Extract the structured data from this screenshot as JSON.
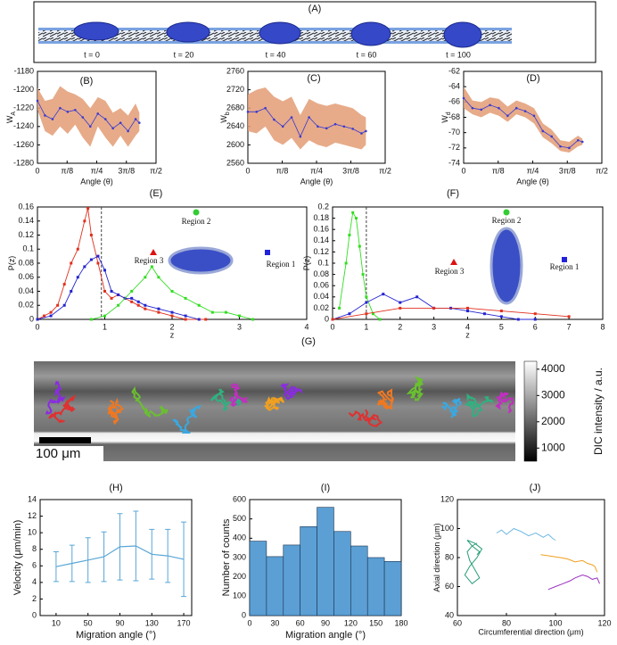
{
  "chart_data": [
    {
      "type": "image_strip",
      "title": "(A)",
      "labels": [
        "t = 0",
        "t = 20",
        "t = 40",
        "t = 60",
        "t = 100"
      ]
    },
    {
      "type": "band_line",
      "title": "(B)",
      "xlabel": "Angle (θ)",
      "ylabel": "W",
      "ylabel_sub": "A",
      "xlim": [
        0,
        1.5708
      ],
      "ylim": [
        -1280,
        -1180
      ],
      "xticks": [
        0,
        {
          "value": 0.3927,
          "label": "π/8"
        },
        {
          "value": 0.7854,
          "label": "π/4"
        },
        {
          "value": 1.1781,
          "label": "3π/8"
        },
        {
          "value": 1.5708,
          "label": "π/2"
        }
      ],
      "yticks": [
        -1280,
        -1260,
        -1240,
        -1220,
        -1200,
        -1180
      ],
      "x": [
        0,
        0.1,
        0.2,
        0.3,
        0.4,
        0.5,
        0.6,
        0.7,
        0.8,
        0.9,
        1.0,
        1.1,
        1.2,
        1.3,
        1.35
      ],
      "values": [
        -1212,
        -1228,
        -1232,
        -1220,
        -1224,
        -1222,
        -1230,
        -1240,
        -1226,
        -1232,
        -1242,
        -1236,
        -1245,
        -1232,
        -1236
      ],
      "lower": [
        -1222,
        -1245,
        -1250,
        -1240,
        -1248,
        -1238,
        -1252,
        -1262,
        -1240,
        -1252,
        -1262,
        -1250,
        -1262,
        -1250,
        -1245
      ],
      "upper": [
        -1198,
        -1212,
        -1210,
        -1196,
        -1202,
        -1205,
        -1210,
        -1220,
        -1208,
        -1212,
        -1225,
        -1220,
        -1228,
        -1215,
        -1225
      ],
      "color": "#3a3ad0",
      "band_color": "#e39c74"
    },
    {
      "type": "band_line",
      "title": "(C)",
      "xlabel": "Angle (θ)",
      "ylabel": "W",
      "ylabel_sub": "b",
      "xlim": [
        0,
        1.5708
      ],
      "ylim": [
        2560,
        2760
      ],
      "xticks": [
        0,
        {
          "value": 0.3927,
          "label": "π/8"
        },
        {
          "value": 0.7854,
          "label": "π/4"
        },
        {
          "value": 1.1781,
          "label": "3π/8"
        },
        {
          "value": 1.5708,
          "label": "π/2"
        }
      ],
      "yticks": [
        2560,
        2600,
        2640,
        2680,
        2720,
        2760
      ],
      "x": [
        0,
        0.1,
        0.2,
        0.3,
        0.4,
        0.5,
        0.6,
        0.7,
        0.8,
        0.9,
        1.0,
        1.1,
        1.2,
        1.3,
        1.35
      ],
      "values": [
        2672,
        2672,
        2680,
        2655,
        2640,
        2660,
        2618,
        2660,
        2640,
        2636,
        2645,
        2640,
        2635,
        2625,
        2630
      ],
      "lower": [
        2630,
        2625,
        2640,
        2610,
        2600,
        2615,
        2590,
        2610,
        2600,
        2595,
        2605,
        2600,
        2595,
        2590,
        2600
      ],
      "upper": [
        2710,
        2720,
        2725,
        2705,
        2695,
        2705,
        2665,
        2700,
        2690,
        2685,
        2690,
        2685,
        2680,
        2665,
        2660
      ],
      "color": "#3a3ad0",
      "band_color": "#e39c74"
    },
    {
      "type": "band_line",
      "title": "(D)",
      "xlabel": "Angle (θ)",
      "ylabel": "W",
      "ylabel_sub": "d",
      "xlim": [
        0,
        1.5708
      ],
      "ylim": [
        -74,
        -62
      ],
      "xticks": [
        0,
        {
          "value": 0.3927,
          "label": "π/8"
        },
        {
          "value": 0.7854,
          "label": "π/4"
        },
        {
          "value": 1.1781,
          "label": "3π/8"
        },
        {
          "value": 1.5708,
          "label": "π/2"
        }
      ],
      "yticks": [
        -74,
        -72,
        -70,
        -68,
        -66,
        -64,
        -62
      ],
      "x": [
        0,
        0.1,
        0.2,
        0.3,
        0.4,
        0.5,
        0.6,
        0.7,
        0.8,
        0.9,
        1.0,
        1.1,
        1.2,
        1.3,
        1.35
      ],
      "values": [
        -65.5,
        -66.8,
        -67,
        -66.4,
        -66.8,
        -67.8,
        -66.8,
        -67.2,
        -67.8,
        -69.8,
        -70.5,
        -71.8,
        -72,
        -71,
        -71.2
      ],
      "lower": [
        -66.8,
        -67.6,
        -68,
        -67.4,
        -67.8,
        -68.6,
        -67.6,
        -68,
        -68.8,
        -70.6,
        -71.4,
        -72.4,
        -72.6,
        -71.8,
        -71.6
      ],
      "upper": [
        -64,
        -65.8,
        -66,
        -65.4,
        -65.6,
        -66.6,
        -65.8,
        -66.2,
        -66.8,
        -68.8,
        -69.6,
        -71,
        -71.2,
        -70.4,
        -70.8
      ],
      "color": "#3a3ad0",
      "band_color": "#e39c74"
    },
    {
      "type": "line",
      "title": "(E)",
      "xlabel": "z",
      "ylabel": "P(z)",
      "xlim": [
        0,
        4
      ],
      "ylim": [
        0,
        0.16
      ],
      "xticks": [
        0,
        1,
        2,
        3,
        4
      ],
      "yticks": [
        0,
        0.02,
        0.04,
        0.06,
        0.08,
        0.1,
        0.12,
        0.14,
        0.16
      ],
      "vline": 0.95,
      "annotations": [
        "Region 1",
        "Region 2",
        "Region 3"
      ],
      "annotation_colors": [
        "#2222dd",
        "#33cc33",
        "#dd1111"
      ],
      "series": [
        {
          "color": "#e0301e",
          "x": [
            0,
            0.1,
            0.2,
            0.3,
            0.4,
            0.5,
            0.6,
            0.7,
            0.75,
            0.8,
            0.9,
            1.0,
            1.1,
            1.2,
            1.3,
            1.4,
            1.5,
            1.6,
            1.8,
            2.0,
            2.2,
            2.5
          ],
          "values": [
            0,
            0.005,
            0.01,
            0.02,
            0.05,
            0.08,
            0.1,
            0.14,
            0.158,
            0.12,
            0.08,
            0.04,
            0.03,
            0.035,
            0.03,
            0.025,
            0.02,
            0.015,
            0.01,
            0.005,
            0,
            0
          ]
        },
        {
          "color": "#2424d0",
          "x": [
            0,
            0.2,
            0.4,
            0.5,
            0.6,
            0.7,
            0.8,
            0.9,
            1.0,
            1.1,
            1.2,
            1.3,
            1.4,
            1.5,
            1.6,
            1.8,
            2.0,
            2.2,
            2.4
          ],
          "values": [
            0,
            0.005,
            0.02,
            0.04,
            0.06,
            0.075,
            0.085,
            0.09,
            0.07,
            0.04,
            0.035,
            0.03,
            0.03,
            0.025,
            0.02,
            0.015,
            0.01,
            0.005,
            0
          ]
        },
        {
          "color": "#33dd22",
          "x": [
            0.8,
            1.0,
            1.2,
            1.4,
            1.6,
            1.7,
            1.8,
            2.0,
            2.2,
            2.4,
            2.6,
            2.8,
            3.0,
            3.2
          ],
          "values": [
            0,
            0.005,
            0.02,
            0.04,
            0.06,
            0.075,
            0.06,
            0.04,
            0.03,
            0.02,
            0.01,
            0.01,
            0.005,
            0
          ]
        }
      ]
    },
    {
      "type": "line",
      "title": "(F)",
      "xlabel": "z",
      "ylabel": "P(z)",
      "xlim": [
        0,
        8
      ],
      "ylim": [
        0,
        0.2
      ],
      "xticks": [
        0,
        1,
        2,
        3,
        4,
        5,
        6,
        7,
        8
      ],
      "yticks": [
        0,
        0.02,
        0.04,
        0.06,
        0.08,
        0.1,
        0.12,
        0.14,
        0.16,
        0.18,
        0.2
      ],
      "vline": 1,
      "annotations": [
        "Region 1",
        "Region 2",
        "Region 3"
      ],
      "annotation_colors": [
        "#2222dd",
        "#33cc33",
        "#dd1111"
      ],
      "series": [
        {
          "color": "#33dd22",
          "x": [
            0.2,
            0.4,
            0.5,
            0.6,
            0.7,
            0.8,
            0.9,
            1.0,
            1.2,
            1.4
          ],
          "values": [
            0.02,
            0.1,
            0.15,
            0.19,
            0.18,
            0.13,
            0.08,
            0.04,
            0.01,
            0
          ]
        },
        {
          "color": "#2424d0",
          "x": [
            0,
            0.5,
            1,
            1.5,
            2,
            2.5,
            3,
            3.5,
            4,
            4.5,
            5,
            5.5,
            6
          ],
          "values": [
            0,
            0.01,
            0.03,
            0.045,
            0.03,
            0.04,
            0.02,
            0.02,
            0.015,
            0.01,
            0.005,
            0,
            0
          ]
        },
        {
          "color": "#e0301e",
          "x": [
            0,
            1,
            2,
            3,
            4,
            5,
            6,
            7
          ],
          "values": [
            0,
            0.01,
            0.02,
            0.02,
            0.02,
            0.015,
            0.01,
            0.005
          ]
        }
      ]
    },
    {
      "type": "image",
      "title": "(G)",
      "scale_bar": "100 μm",
      "colorbar_label": "DIC intensity / a.u.",
      "colorbar_lim": [
        500,
        4300
      ],
      "colorbar_ticks": [
        1000,
        2000,
        3000,
        4000
      ]
    },
    {
      "type": "errorbar",
      "title": "(H)",
      "xlabel": "Migration angle (°)",
      "ylabel": "Velocity (μm/min)",
      "xlim": [
        -10,
        180
      ],
      "ylim": [
        0,
        14
      ],
      "xticks": [
        10,
        50,
        90,
        130,
        170
      ],
      "yticks": [
        0,
        2,
        4,
        6,
        8,
        10,
        12,
        14
      ],
      "x": [
        10,
        30,
        50,
        70,
        90,
        110,
        130,
        150,
        170
      ],
      "values": [
        5.9,
        6.3,
        6.7,
        7.1,
        8.3,
        8.4,
        7.4,
        7.2,
        6.8
      ],
      "errors": [
        1.8,
        2.2,
        2.7,
        3.0,
        4.0,
        4.2,
        3.0,
        3.2,
        4.5
      ],
      "color": "#5aa6d6"
    },
    {
      "type": "histogram",
      "title": "(I)",
      "xlabel": "Migration angle (°)",
      "ylabel": "Number of counts",
      "xlim": [
        0,
        180
      ],
      "ylim": [
        0,
        600
      ],
      "xticks": [
        0,
        30,
        60,
        90,
        120,
        150,
        180
      ],
      "yticks": [
        0,
        100,
        200,
        300,
        400,
        500,
        600
      ],
      "bins": [
        0,
        20,
        40,
        60,
        80,
        100,
        120,
        140,
        160,
        180
      ],
      "values": [
        385,
        305,
        365,
        460,
        560,
        435,
        360,
        300,
        280
      ],
      "color": "#5b9fd4"
    },
    {
      "type": "track",
      "title": "(J)",
      "xlabel": "Circumferential direction (μm)",
      "ylabel": "Axial direction (μm)",
      "xlim": [
        60,
        120
      ],
      "ylim": [
        40,
        120
      ],
      "xticks": [
        60,
        80,
        100,
        120
      ],
      "yticks": [
        40,
        60,
        80,
        100,
        120
      ],
      "series": [
        {
          "color": "#2a9d7a",
          "x": [
            68,
            66,
            64,
            65,
            67,
            69,
            66,
            63,
            65,
            68,
            70,
            67,
            64,
            66,
            69,
            68
          ],
          "values": [
            90,
            88,
            84,
            78,
            72,
            66,
            62,
            68,
            74,
            80,
            86,
            90,
            92,
            88,
            84,
            82
          ]
        },
        {
          "color": "#6cb8e0",
          "x": [
            76,
            78,
            80,
            83,
            86,
            89,
            92,
            95,
            97,
            99,
            100
          ],
          "values": [
            97,
            99,
            96,
            100,
            98,
            95,
            97,
            94,
            96,
            93,
            92
          ]
        },
        {
          "color": "#f0a020",
          "x": [
            94,
            98,
            102,
            105,
            108,
            111,
            113,
            115,
            116,
            117
          ],
          "values": [
            82,
            81,
            80,
            79,
            77,
            78,
            76,
            75,
            74,
            70
          ]
        },
        {
          "color": "#9b30c0",
          "x": [
            97,
            100,
            103,
            106,
            108,
            111,
            113,
            115,
            117,
            118
          ],
          "values": [
            58,
            60,
            62,
            64,
            66,
            68,
            67,
            65,
            66,
            62
          ]
        }
      ]
    }
  ]
}
